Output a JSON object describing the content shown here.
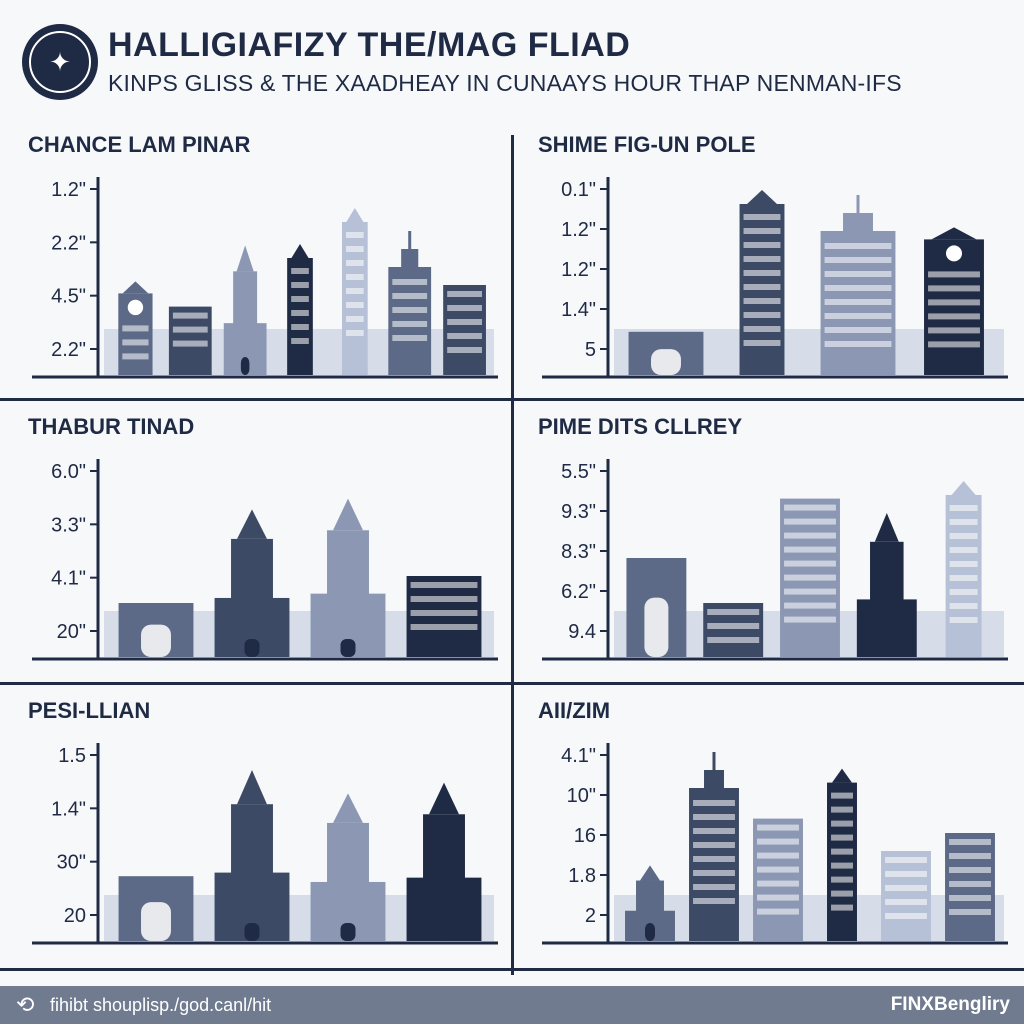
{
  "header": {
    "title": "HALLIGIAFIZY THE/MAG FLIAD",
    "subtitle": "KINPS GLISS & THE XAADHEAY IN CUNAAYS HOUR THAP NENMAN-IFS",
    "logo_icon": "emblem-icon"
  },
  "colors": {
    "navy": "#1f2a44",
    "dark": "#3d4a66",
    "mid": "#5c6a88",
    "light": "#8b97b3",
    "pale": "#b6c0d6",
    "band": "#cdd5e4"
  },
  "chart_data": [
    {
      "type": "bar",
      "title": "CHANCE LAM PINAR",
      "tick_labels": [
        "1.2\"",
        "2.2\"",
        "4.5\"",
        "2.2\""
      ],
      "buildings": [
        {
          "kind": "clocktower",
          "value": 52
        },
        {
          "kind": "block",
          "value": 38
        },
        {
          "kind": "temple",
          "value": 72
        },
        {
          "kind": "tower",
          "value": 65
        },
        {
          "kind": "tower",
          "value": 85
        },
        {
          "kind": "spire-block",
          "value": 70
        },
        {
          "kind": "block",
          "value": 50
        }
      ]
    },
    {
      "type": "bar",
      "title": "SHIME FIG-UN POLE",
      "tick_labels": [
        "0.1\"",
        "1.2\"",
        "1.2\"",
        "1.4\"",
        "5"
      ],
      "buildings": [
        {
          "kind": "gate",
          "value": 24
        },
        {
          "kind": "tower",
          "value": 95
        },
        {
          "kind": "spire-block",
          "value": 90
        },
        {
          "kind": "clocktower",
          "value": 82
        }
      ]
    },
    {
      "type": "bar",
      "title": "THABUR TINAD",
      "tick_labels": [
        "6.0\"",
        "3.3\"",
        "4.1\"",
        "20\""
      ],
      "buildings": [
        {
          "kind": "gate",
          "value": 30
        },
        {
          "kind": "temple",
          "value": 82
        },
        {
          "kind": "temple",
          "value": 88
        },
        {
          "kind": "block",
          "value": 45
        }
      ]
    },
    {
      "type": "bar",
      "title": "PIME DITS CLLREY",
      "tick_labels": [
        "5.5\"",
        "9.3\"",
        "8.3\"",
        "6.2\"",
        "9.4"
      ],
      "buildings": [
        {
          "kind": "gate",
          "value": 55
        },
        {
          "kind": "block",
          "value": 30
        },
        {
          "kind": "block",
          "value": 88
        },
        {
          "kind": "temple",
          "value": 80
        },
        {
          "kind": "tower",
          "value": 90
        }
      ]
    },
    {
      "type": "bar",
      "title": "PESI-LLIAN",
      "tick_labels": [
        "1.5",
        "1.4\"",
        "30\"",
        "20"
      ],
      "buildings": [
        {
          "kind": "gate",
          "value": 36
        },
        {
          "kind": "temple",
          "value": 95
        },
        {
          "kind": "temple",
          "value": 82
        },
        {
          "kind": "temple",
          "value": 88
        }
      ]
    },
    {
      "type": "bar",
      "title": "AII/ZIM",
      "tick_labels": [
        "4.1\"",
        "10\"",
        "16",
        "1.8",
        "2"
      ],
      "buildings": [
        {
          "kind": "temple",
          "value": 42
        },
        {
          "kind": "spire-block",
          "value": 95
        },
        {
          "kind": "block",
          "value": 68
        },
        {
          "kind": "tower",
          "value": 88
        },
        {
          "kind": "block",
          "value": 50
        },
        {
          "kind": "block",
          "value": 60
        }
      ]
    }
  ],
  "footer": {
    "icon": "share-icon",
    "url": "fihibt shouplisp./god.canl/hit",
    "brand": "FINXBengliry"
  }
}
